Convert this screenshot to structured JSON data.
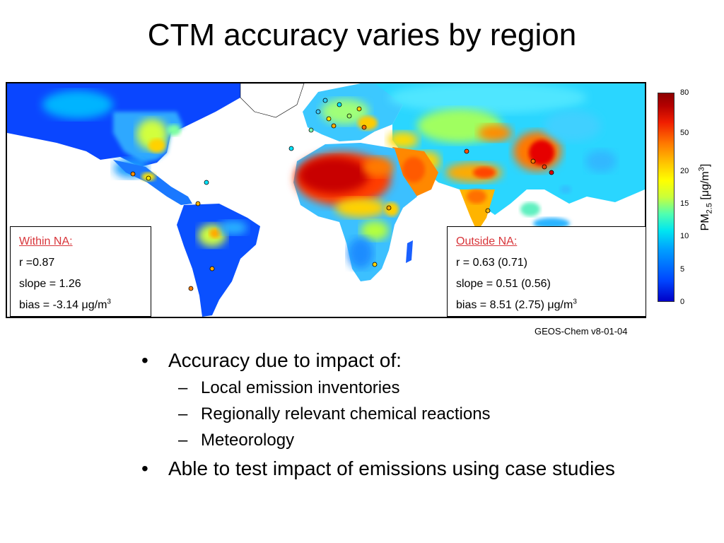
{
  "slide": {
    "title": "CTM accuracy varies by region",
    "credit": "GEOS-Chem v8-01-04"
  },
  "map": {
    "description_colors": {
      "low": "#0033ff",
      "mid": "#ffff00",
      "high": "#b40000"
    }
  },
  "within_na": {
    "header": "Within NA:",
    "r": "r =0.87",
    "slope": "slope = 1.26",
    "bias_prefix": "bias = -3.14 μg/m",
    "bias_exp": "3"
  },
  "outside_na": {
    "header": "Outside NA:",
    "r": "r = 0.63 (0.71)",
    "slope": "slope = 0.51 (0.56)",
    "bias_prefix": "bias = 8.51 (2.75) μg/m",
    "bias_exp": "3"
  },
  "colorbar": {
    "ticks": [
      "80",
      "50",
      "20",
      "15",
      "10",
      "5",
      "0"
    ],
    "label_main": "PM",
    "label_sub": "2.5",
    "label_unit_prefix": " [μg/m",
    "label_unit_exp": "3",
    "label_unit_suffix": "]"
  },
  "bullets": {
    "item1": "Accuracy due to impact of:",
    "sub1": "Local emission inventories",
    "sub2": "Regionally relevant chemical reactions",
    "sub3": "Meteorology",
    "item2": "Able to test impact of emissions using case studies",
    "bullet_glyph": "•",
    "dash_glyph": "–"
  }
}
